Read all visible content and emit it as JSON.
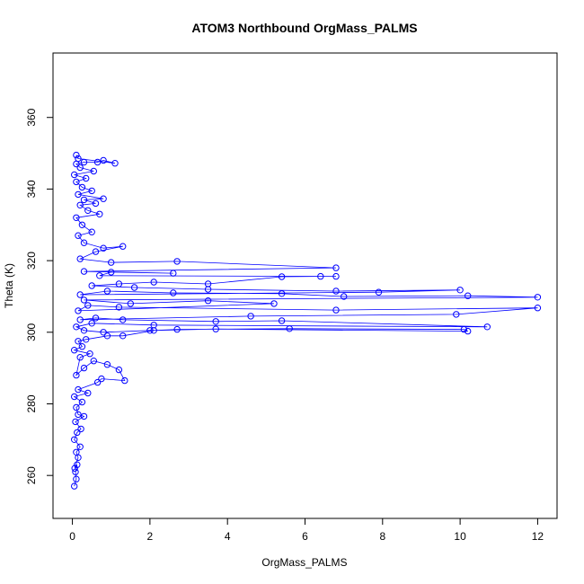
{
  "chart_data": {
    "type": "line",
    "title": "ATOM3 Northbound OrgMass_PALMS",
    "xlabel": "OrgMass_PALMS",
    "ylabel": "Theta (K)",
    "xlim": [
      -0.5,
      12.5
    ],
    "ylim": [
      248,
      378
    ],
    "xticks": [
      0,
      2,
      4,
      6,
      8,
      10,
      12
    ],
    "yticks": [
      260,
      280,
      300,
      320,
      340,
      360
    ],
    "marker": "open-circle",
    "grid": false,
    "legend": "none",
    "colors": {
      "series": "#0000ff",
      "axis": "#000000",
      "background": "#ffffff"
    },
    "series": [
      {
        "points": [
          [
            0.05,
            257.0
          ],
          [
            0.1,
            259.0
          ],
          [
            0.08,
            261.0
          ],
          [
            0.12,
            263.0
          ],
          [
            0.06,
            262.0
          ],
          [
            0.15,
            265.0
          ],
          [
            0.1,
            266.5
          ],
          [
            0.2,
            268.0
          ],
          [
            0.05,
            270.0
          ],
          [
            0.12,
            272.0
          ],
          [
            0.22,
            273.0
          ],
          [
            0.08,
            275.0
          ],
          [
            0.3,
            276.5
          ],
          [
            0.15,
            277.0
          ],
          [
            0.1,
            279.0
          ],
          [
            0.25,
            280.5
          ],
          [
            0.05,
            282.0
          ],
          [
            0.4,
            283.0
          ],
          [
            0.15,
            284.0
          ],
          [
            0.65,
            286.0
          ],
          [
            0.75,
            287.0
          ],
          [
            1.35,
            286.5
          ],
          [
            1.2,
            289.5
          ],
          [
            0.9,
            291.0
          ],
          [
            0.55,
            292.0
          ],
          [
            0.3,
            290.0
          ],
          [
            0.1,
            288.0
          ],
          [
            0.2,
            293.0
          ],
          [
            0.45,
            294.0
          ],
          [
            0.05,
            295.0
          ],
          [
            0.25,
            296.0
          ],
          [
            0.15,
            297.5
          ],
          [
            0.35,
            298.0
          ],
          [
            0.9,
            299.0
          ],
          [
            1.3,
            299.0
          ],
          [
            2.1,
            300.5
          ],
          [
            2.7,
            300.8
          ],
          [
            5.6,
            301.0
          ],
          [
            10.1,
            300.8
          ],
          [
            10.2,
            300.3
          ],
          [
            3.7,
            300.9
          ],
          [
            2.0,
            300.5
          ],
          [
            0.8,
            300.0
          ],
          [
            0.3,
            300.5
          ],
          [
            0.1,
            301.5
          ],
          [
            0.5,
            302.5
          ],
          [
            2.1,
            302.0
          ],
          [
            10.7,
            301.5
          ],
          [
            5.4,
            303.2
          ],
          [
            3.7,
            303.0
          ],
          [
            1.3,
            303.5
          ],
          [
            0.6,
            304.0
          ],
          [
            0.2,
            303.5
          ],
          [
            4.6,
            304.5
          ],
          [
            9.9,
            305.0
          ],
          [
            12.0,
            306.8
          ],
          [
            6.8,
            306.2
          ],
          [
            1.2,
            307.0
          ],
          [
            0.4,
            307.5
          ],
          [
            0.15,
            306.0
          ],
          [
            5.2,
            308.0
          ],
          [
            3.5,
            308.8
          ],
          [
            1.5,
            308.0
          ],
          [
            0.3,
            309.0
          ],
          [
            12.0,
            309.8
          ],
          [
            10.2,
            310.2
          ],
          [
            7.0,
            310.0
          ],
          [
            5.4,
            310.8
          ],
          [
            2.6,
            311.0
          ],
          [
            0.9,
            311.5
          ],
          [
            0.2,
            310.5
          ],
          [
            7.9,
            311.2
          ],
          [
            10.0,
            311.8
          ],
          [
            6.8,
            311.5
          ],
          [
            3.5,
            312.0
          ],
          [
            1.6,
            312.5
          ],
          [
            0.5,
            313.0
          ],
          [
            1.2,
            313.5
          ],
          [
            2.1,
            314.0
          ],
          [
            3.5,
            313.5
          ],
          [
            5.4,
            315.5
          ],
          [
            6.4,
            315.6
          ],
          [
            6.8,
            315.6
          ],
          [
            0.7,
            315.8
          ],
          [
            1.0,
            316.8
          ],
          [
            2.6,
            316.5
          ],
          [
            0.3,
            317.0
          ],
          [
            6.8,
            318.0
          ],
          [
            2.7,
            319.8
          ],
          [
            1.0,
            319.5
          ],
          [
            0.2,
            320.5
          ],
          [
            0.6,
            322.5
          ],
          [
            1.3,
            324.0
          ],
          [
            0.8,
            323.5
          ],
          [
            0.3,
            325.0
          ],
          [
            0.15,
            327.0
          ],
          [
            0.5,
            328.0
          ],
          [
            0.25,
            330.0
          ],
          [
            0.1,
            332.0
          ],
          [
            0.7,
            333.0
          ],
          [
            0.4,
            334.0
          ],
          [
            0.2,
            335.5
          ],
          [
            0.6,
            336.0
          ],
          [
            0.3,
            337.0
          ],
          [
            0.8,
            337.3
          ],
          [
            0.15,
            338.5
          ],
          [
            0.5,
            339.5
          ],
          [
            0.25,
            340.5
          ],
          [
            0.1,
            342.0
          ],
          [
            0.35,
            343.0
          ],
          [
            0.05,
            344.0
          ],
          [
            0.55,
            345.0
          ],
          [
            0.2,
            346.0
          ],
          [
            0.1,
            347.0
          ],
          [
            0.3,
            347.5
          ],
          [
            0.65,
            347.5
          ],
          [
            0.8,
            348.0
          ],
          [
            1.1,
            347.2
          ],
          [
            0.15,
            348.5
          ],
          [
            0.1,
            349.5
          ]
        ]
      }
    ]
  }
}
